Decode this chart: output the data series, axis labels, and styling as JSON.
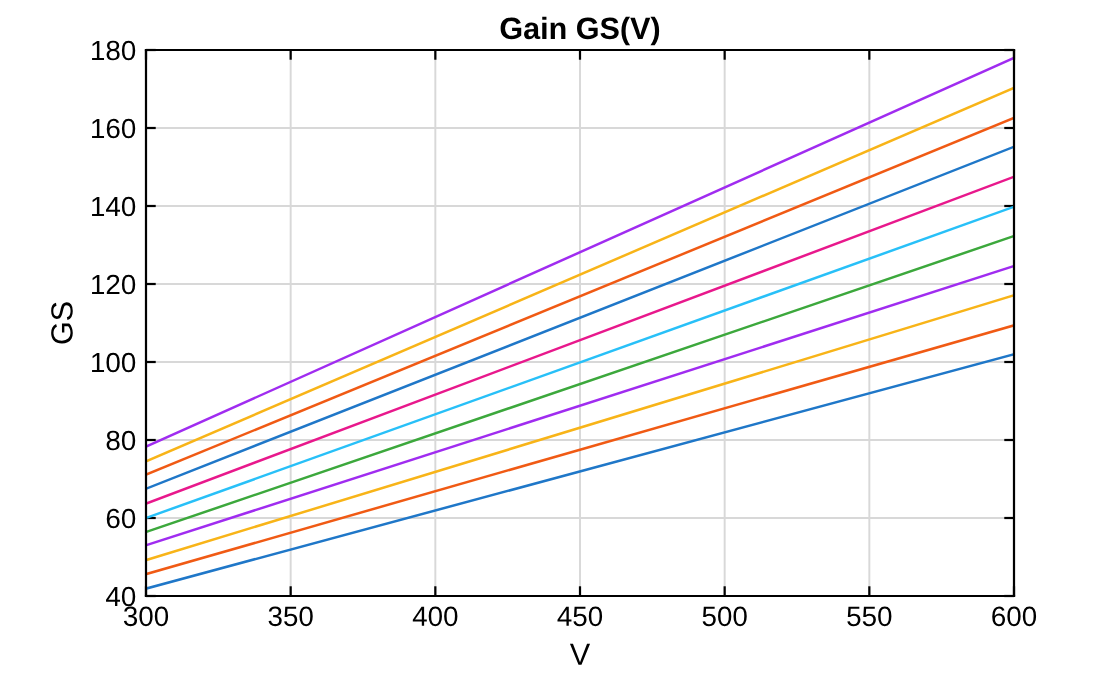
{
  "chart_data": {
    "type": "line",
    "title": "Gain GS(V)",
    "xlabel": "V",
    "ylabel": "GS",
    "x": [
      300,
      600
    ],
    "series": [
      {
        "color": "#1f77c8",
        "values": [
          41.9,
          102
        ]
      },
      {
        "color": "#f05a14",
        "values": [
          45.6,
          109.4
        ]
      },
      {
        "color": "#f8b418",
        "values": [
          49.2,
          117.1
        ]
      },
      {
        "color": "#a02cf0",
        "values": [
          53,
          124.6
        ]
      },
      {
        "color": "#3ca83c",
        "values": [
          56.4,
          132.3
        ]
      },
      {
        "color": "#28c0f8",
        "values": [
          60,
          139.8
        ]
      },
      {
        "color": "#e8188c",
        "values": [
          63.7,
          147.5
        ]
      },
      {
        "color": "#1f77c8",
        "values": [
          67.5,
          155.2
        ]
      },
      {
        "color": "#f05a14",
        "values": [
          71.1,
          162.6
        ]
      },
      {
        "color": "#f8b418",
        "values": [
          74.5,
          170.3
        ]
      },
      {
        "color": "#a02cf0",
        "values": [
          78.3,
          178
        ]
      }
    ],
    "xlim": [
      300,
      600
    ],
    "xticks": [
      300,
      350,
      400,
      450,
      500,
      550,
      600
    ],
    "ylim": [
      40,
      180
    ],
    "yticks": [
      40,
      60,
      80,
      100,
      120,
      140,
      160,
      180
    ],
    "grid": true,
    "marker": "none",
    "line_style": "solid"
  }
}
